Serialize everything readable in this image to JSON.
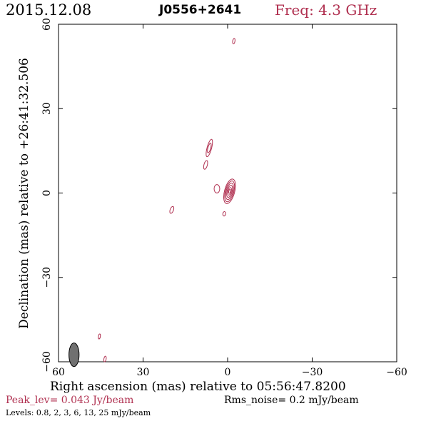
{
  "header": {
    "date": "2015.12.08",
    "source": "J0556+2641",
    "frequency": "Freq: 4.3 GHz"
  },
  "footer": {
    "peak": "Peak_lev=  0.043 Jy/beam",
    "rms": "Rms_noise=  0.2 mJy/beam",
    "levels": "Levels: 0.8,   2,   3,   6,  13,  25 mJy/beam"
  },
  "colors": {
    "contour": "#b03050",
    "beam": "#707070",
    "axis": "#000000"
  },
  "chart_data": {
    "type": "contour",
    "title": "J0556+2641",
    "xlabel": "Right ascension (mas) relative to 05:56:47.8200",
    "ylabel": "Declination (mas) relative to +26:41:32.506",
    "xlim": [
      60,
      -60
    ],
    "ylim": [
      -60,
      60
    ],
    "xticks": [
      60,
      30,
      0,
      -30,
      -60
    ],
    "yticks": [
      -60,
      -30,
      0,
      30,
      60
    ],
    "xtick_labels": [
      "60",
      "30",
      "0",
      "−30",
      "−60"
    ],
    "ytick_labels": [
      "−60",
      "−30",
      "0",
      "30",
      "60"
    ],
    "contour_levels_mJy": [
      0.8,
      2,
      3,
      6,
      13,
      25
    ],
    "peak_Jy_per_beam": 0.043,
    "rms_noise_mJy_per_beam": 0.2,
    "beam": {
      "ra": 54.5,
      "dec": -57.5,
      "major_mas": 4.2,
      "minor_mas": 1.8,
      "pa_deg": 20
    },
    "components": [
      {
        "ra": -0.7,
        "dec": 0.6,
        "levels": [
          {
            "a": 4.5,
            "b": 1.8,
            "pa": 15
          },
          {
            "a": 3.8,
            "b": 1.5,
            "pa": 15
          },
          {
            "a": 3.0,
            "b": 1.2,
            "pa": 15
          },
          {
            "a": 2.2,
            "b": 0.9,
            "pa": 15
          },
          {
            "a": 1.4,
            "b": 0.6,
            "pa": 15
          },
          {
            "a": 0.7,
            "b": 0.3,
            "pa": 15
          }
        ]
      },
      {
        "ra": 3.8,
        "dec": 1.5,
        "levels": [
          {
            "a": 1.5,
            "b": 1.0,
            "pa": 0
          }
        ]
      },
      {
        "ra": 6.5,
        "dec": 16.0,
        "levels": [
          {
            "a": 3.2,
            "b": 0.8,
            "pa": 15
          },
          {
            "a": 1.8,
            "b": 0.5,
            "pa": 15
          }
        ]
      },
      {
        "ra": 7.8,
        "dec": 10.0,
        "levels": [
          {
            "a": 1.6,
            "b": 0.6,
            "pa": 15
          }
        ]
      },
      {
        "ra": 19.8,
        "dec": -6.0,
        "levels": [
          {
            "a": 1.3,
            "b": 0.6,
            "pa": 20
          }
        ]
      },
      {
        "ra": 1.2,
        "dec": -7.4,
        "levels": [
          {
            "a": 0.8,
            "b": 0.5,
            "pa": 10
          }
        ]
      },
      {
        "ra": -2.2,
        "dec": 54.0,
        "levels": [
          {
            "a": 1.0,
            "b": 0.4,
            "pa": 10
          }
        ]
      },
      {
        "ra": 45.5,
        "dec": -51.0,
        "levels": [
          {
            "a": 0.9,
            "b": 0.35,
            "pa": 10
          }
        ]
      },
      {
        "ra": 43.5,
        "dec": -59.0,
        "levels": [
          {
            "a": 1.0,
            "b": 0.4,
            "pa": 10
          }
        ]
      }
    ]
  }
}
